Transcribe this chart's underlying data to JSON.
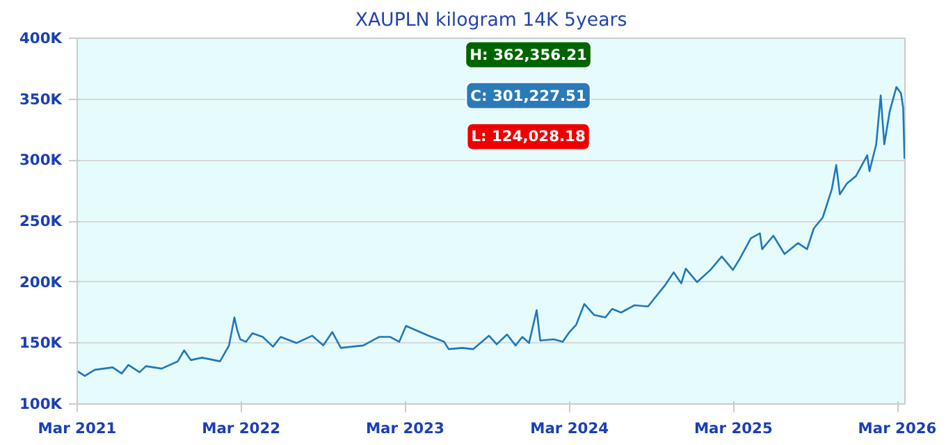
{
  "chart_data": {
    "type": "line",
    "title": "XAUPLN kilogram 14K 5years",
    "annotations": [
      "H: 362,356.21",
      "C: 301,227.51",
      "L: 124,028.18"
    ],
    "x": [
      "2021-03-01",
      "2021-03-18",
      "2021-04-09",
      "2021-05-19",
      "2021-06-08",
      "2021-06-23",
      "2021-07-18",
      "2021-08-01",
      "2021-09-05",
      "2021-10-11",
      "2021-10-25",
      "2021-11-09",
      "2021-12-04",
      "2022-01-13",
      "2022-02-02",
      "2022-02-14",
      "2022-02-20",
      "2022-02-27",
      "2022-03-12",
      "2022-03-26",
      "2022-04-18",
      "2022-05-11",
      "2022-05-28",
      "2022-07-02",
      "2022-08-06",
      "2022-08-31",
      "2022-09-20",
      "2022-10-09",
      "2022-11-28",
      "2023-01-02",
      "2023-01-27",
      "2023-02-16",
      "2023-03-03",
      "2023-03-28",
      "2023-04-22",
      "2023-05-27",
      "2023-06-06",
      "2023-07-06",
      "2023-07-31",
      "2023-09-04",
      "2023-09-21",
      "2023-10-14",
      "2023-11-02",
      "2023-11-17",
      "2023-12-02",
      "2023-12-19",
      "2023-12-27",
      "2024-01-26",
      "2024-02-15",
      "2024-03-01",
      "2024-03-16",
      "2024-04-03",
      "2024-04-25",
      "2024-05-20",
      "2024-06-04",
      "2024-06-24",
      "2024-07-24",
      "2024-08-23",
      "2024-09-07",
      "2024-09-29",
      "2024-10-19",
      "2024-11-05",
      "2024-11-15",
      "2024-12-10",
      "2025-01-09",
      "2025-02-03",
      "2025-02-28",
      "2025-03-15",
      "2025-04-09",
      "2025-04-29",
      "2025-05-04",
      "2025-05-29",
      "2025-06-23",
      "2025-07-23",
      "2025-08-12",
      "2025-08-27",
      "2025-09-16",
      "2025-10-06",
      "2025-10-16",
      "2025-10-24",
      "2025-11-09",
      "2025-11-29",
      "2025-12-24",
      "2025-12-29",
      "2026-01-13",
      "2026-01-23",
      "2026-01-31",
      "2026-02-12",
      "2026-02-27",
      "2026-03-09",
      "2026-03-14",
      "2026-03-16",
      "2026-03-17"
    ],
    "series": [
      {
        "color": "#1f78b8",
        "values": [
          127000,
          123000,
          128000,
          130000,
          125000,
          132000,
          126000,
          131000,
          129000,
          135000,
          144000,
          136000,
          138000,
          135000,
          148000,
          171000,
          161000,
          153000,
          151000,
          158000,
          155000,
          147000,
          155000,
          150000,
          156000,
          148000,
          159000,
          146000,
          148000,
          155000,
          155000,
          151000,
          164000,
          160000,
          156000,
          151000,
          145000,
          146000,
          145000,
          156000,
          149000,
          157000,
          148000,
          155000,
          150000,
          177000,
          152000,
          153000,
          151000,
          159000,
          165000,
          182000,
          173000,
          171000,
          178000,
          175000,
          181000,
          180000,
          187000,
          197000,
          208000,
          199000,
          211000,
          200000,
          210000,
          221000,
          210000,
          219000,
          236000,
          240000,
          227000,
          238000,
          223000,
          232000,
          227000,
          244000,
          253000,
          276000,
          296000,
          272000,
          281000,
          287000,
          304000,
          291000,
          313000,
          353000,
          313000,
          340000,
          360000,
          355000,
          343000,
          315000,
          301000
        ]
      }
    ],
    "xlim": [
      "2021-03-01",
      "2026-03-18"
    ],
    "xticks": [
      {
        "value": "2021-03-01",
        "label": "Mar 2021"
      },
      {
        "value": "2022-03-01",
        "label": "Mar 2022"
      },
      {
        "value": "2023-03-01",
        "label": "Mar 2023"
      },
      {
        "value": "2024-03-01",
        "label": "Mar 2024"
      },
      {
        "value": "2025-03-01",
        "label": "Mar 2025"
      },
      {
        "value": "2026-03-01",
        "label": "Mar 2026"
      }
    ],
    "ylim": [
      100000,
      400000
    ],
    "yticks": [
      {
        "value": 100000,
        "label": "100K"
      },
      {
        "value": 150000,
        "label": "150K"
      },
      {
        "value": 200000,
        "label": "200K"
      },
      {
        "value": 250000,
        "label": "250K"
      },
      {
        "value": 300000,
        "label": "300K"
      },
      {
        "value": 350000,
        "label": "350K"
      },
      {
        "value": 400000,
        "label": "400K"
      }
    ],
    "grid": "y",
    "marker": "none",
    "line_style": "solid"
  }
}
